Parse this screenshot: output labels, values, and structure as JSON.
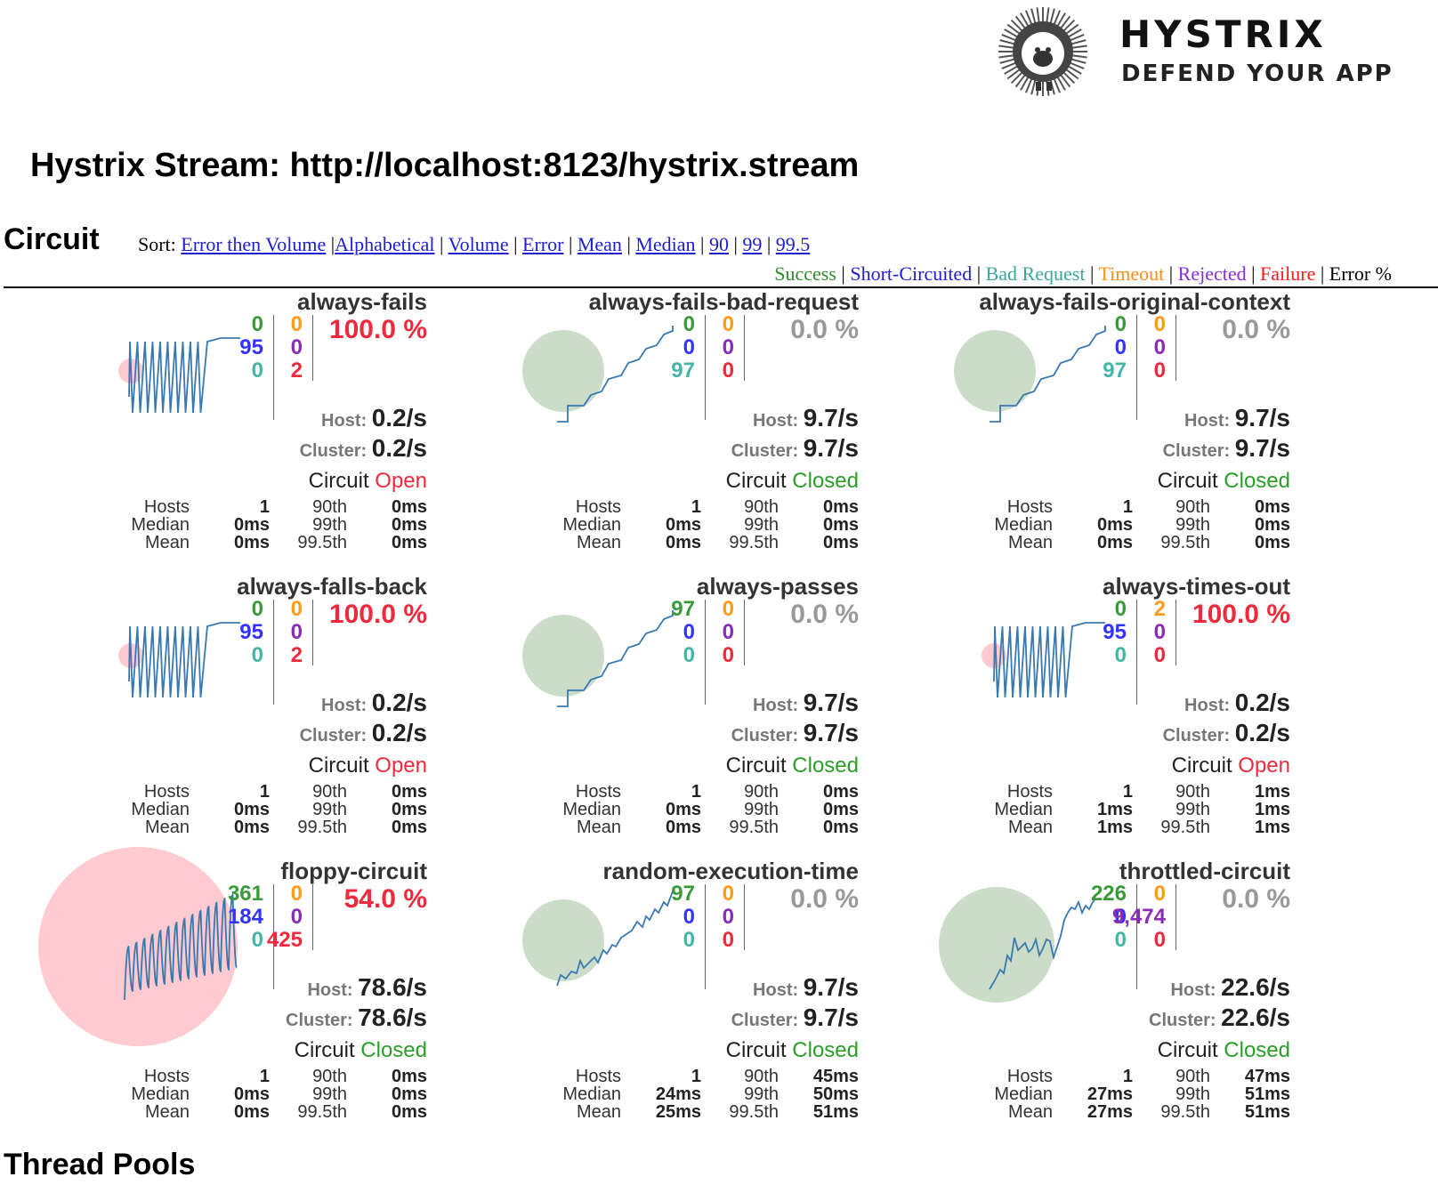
{
  "logo": {
    "title": "HYSTRIX",
    "subtitle": "DEFEND YOUR APP"
  },
  "stream_title": "Hystrix Stream: http://localhost:8123/hystrix.stream",
  "section_title": "Circuit",
  "sort": {
    "label": "Sort:",
    "options": [
      "Error then Volume",
      "Alphabetical",
      "Volume",
      "Error",
      "Mean",
      "Median",
      "90",
      "99",
      "99.5"
    ]
  },
  "legend": [
    {
      "label": "Success",
      "color": "#2e8b2e"
    },
    {
      "label": "Short-Circuited",
      "color": "#2020d0"
    },
    {
      "label": "Bad Request",
      "color": "#3aa89a"
    },
    {
      "label": "Timeout",
      "color": "#ff8c1a"
    },
    {
      "label": "Rejected",
      "color": "#8a2be2"
    },
    {
      "label": "Failure",
      "color": "#ff1a1a"
    },
    {
      "label": "Error %",
      "color": "#000000"
    }
  ],
  "colors": {
    "success": "#3a9a3a",
    "short": "#3333ff",
    "bad": "#45b5a8",
    "timeout": "#ff9a1a",
    "rejected": "#8a2bb8",
    "failure": "#ee2a3c",
    "error_red": "#ee2a3c",
    "error_grey": "#999999",
    "open": "#ee2a3c",
    "closed": "#2aa02a",
    "spark": "#3a78b0",
    "bubble_green": "#b9d2b7",
    "bubble_red": "#ffb3bc"
  },
  "labels": {
    "host": "Host:",
    "cluster": "Cluster:",
    "circuit": "Circuit",
    "hosts": "Hosts",
    "median": "Median",
    "mean": "Mean",
    "p90": "90th",
    "p99": "99th",
    "p995": "99.5th"
  },
  "circuits": [
    {
      "name": "always-fails",
      "success": "0",
      "short": "95",
      "bad": "0",
      "timeout": "0",
      "rejected": "0",
      "failure": "2",
      "error": "100.0 %",
      "error_color": "error_red",
      "host": "0.2/s",
      "cluster": "0.2/s",
      "state": "Open",
      "state_color": "open",
      "hosts": "1",
      "median": "0ms",
      "mean": "0ms",
      "p90": "0ms",
      "p99": "0ms",
      "p995": "0ms",
      "bubble": "red_small",
      "spark": "oscillate"
    },
    {
      "name": "always-fails-bad-request",
      "success": "0",
      "short": "0",
      "bad": "97",
      "timeout": "0",
      "rejected": "0",
      "failure": "0",
      "error": "0.0 %",
      "error_color": "error_grey",
      "host": "9.7/s",
      "cluster": "9.7/s",
      "state": "Closed",
      "state_color": "closed",
      "hosts": "1",
      "median": "0ms",
      "mean": "0ms",
      "p90": "0ms",
      "p99": "0ms",
      "p995": "0ms",
      "bubble": "green",
      "spark": "stairs"
    },
    {
      "name": "always-fails-original-context",
      "success": "0",
      "short": "0",
      "bad": "97",
      "timeout": "0",
      "rejected": "0",
      "failure": "0",
      "error": "0.0 %",
      "error_color": "error_grey",
      "host": "9.7/s",
      "cluster": "9.7/s",
      "state": "Closed",
      "state_color": "closed",
      "hosts": "1",
      "median": "0ms",
      "mean": "0ms",
      "p90": "0ms",
      "p99": "0ms",
      "p995": "0ms",
      "bubble": "green",
      "spark": "stairs"
    },
    {
      "name": "always-falls-back",
      "success": "0",
      "short": "95",
      "bad": "0",
      "timeout": "0",
      "rejected": "0",
      "failure": "2",
      "error": "100.0 %",
      "error_color": "error_red",
      "host": "0.2/s",
      "cluster": "0.2/s",
      "state": "Open",
      "state_color": "open",
      "hosts": "1",
      "median": "0ms",
      "mean": "0ms",
      "p90": "0ms",
      "p99": "0ms",
      "p995": "0ms",
      "bubble": "red_small",
      "spark": "oscillate"
    },
    {
      "name": "always-passes",
      "success": "97",
      "short": "0",
      "bad": "0",
      "timeout": "0",
      "rejected": "0",
      "failure": "0",
      "error": "0.0 %",
      "error_color": "error_grey",
      "host": "9.7/s",
      "cluster": "9.7/s",
      "state": "Closed",
      "state_color": "closed",
      "hosts": "1",
      "median": "0ms",
      "mean": "0ms",
      "p90": "0ms",
      "p99": "0ms",
      "p995": "0ms",
      "bubble": "green",
      "spark": "stairs"
    },
    {
      "name": "always-times-out",
      "success": "0",
      "short": "95",
      "bad": "0",
      "timeout": "2",
      "rejected": "0",
      "failure": "0",
      "error": "100.0 %",
      "error_color": "error_red",
      "host": "0.2/s",
      "cluster": "0.2/s",
      "state": "Open",
      "state_color": "open",
      "hosts": "1",
      "median": "1ms",
      "mean": "1ms",
      "p90": "1ms",
      "p99": "1ms",
      "p995": "1ms",
      "bubble": "red_small",
      "spark": "oscillate"
    },
    {
      "name": "floppy-circuit",
      "success": "361",
      "short": "184",
      "bad": "0",
      "timeout": "0",
      "rejected": "0",
      "failure": "425",
      "error": "54.0 %",
      "error_color": "error_red",
      "host": "78.6/s",
      "cluster": "78.6/s",
      "state": "Closed",
      "state_color": "closed",
      "hosts": "1",
      "median": "0ms",
      "mean": "0ms",
      "p90": "0ms",
      "p99": "0ms",
      "p995": "0ms",
      "bubble": "red_big",
      "spark": "floppy"
    },
    {
      "name": "random-execution-time",
      "success": "97",
      "short": "0",
      "bad": "0",
      "timeout": "0",
      "rejected": "0",
      "failure": "0",
      "error": "0.0 %",
      "error_color": "error_grey",
      "host": "9.7/s",
      "cluster": "9.7/s",
      "state": "Closed",
      "state_color": "closed",
      "hosts": "1",
      "median": "24ms",
      "mean": "25ms",
      "p90": "45ms",
      "p99": "50ms",
      "p995": "51ms",
      "bubble": "green",
      "spark": "jagged"
    },
    {
      "name": "throttled-circuit",
      "success": "226",
      "short": "0",
      "bad": "0",
      "timeout": "0",
      "rejected": "9,474",
      "failure": "0",
      "error": "0.0 %",
      "error_color": "error_grey",
      "host": "22.6/s",
      "cluster": "22.6/s",
      "state": "Closed",
      "state_color": "closed",
      "hosts": "1",
      "median": "27ms",
      "mean": "27ms",
      "p90": "47ms",
      "p99": "51ms",
      "p995": "51ms",
      "bubble": "green_big",
      "spark": "throttle"
    }
  ],
  "next_section_title": "Thread Pools"
}
